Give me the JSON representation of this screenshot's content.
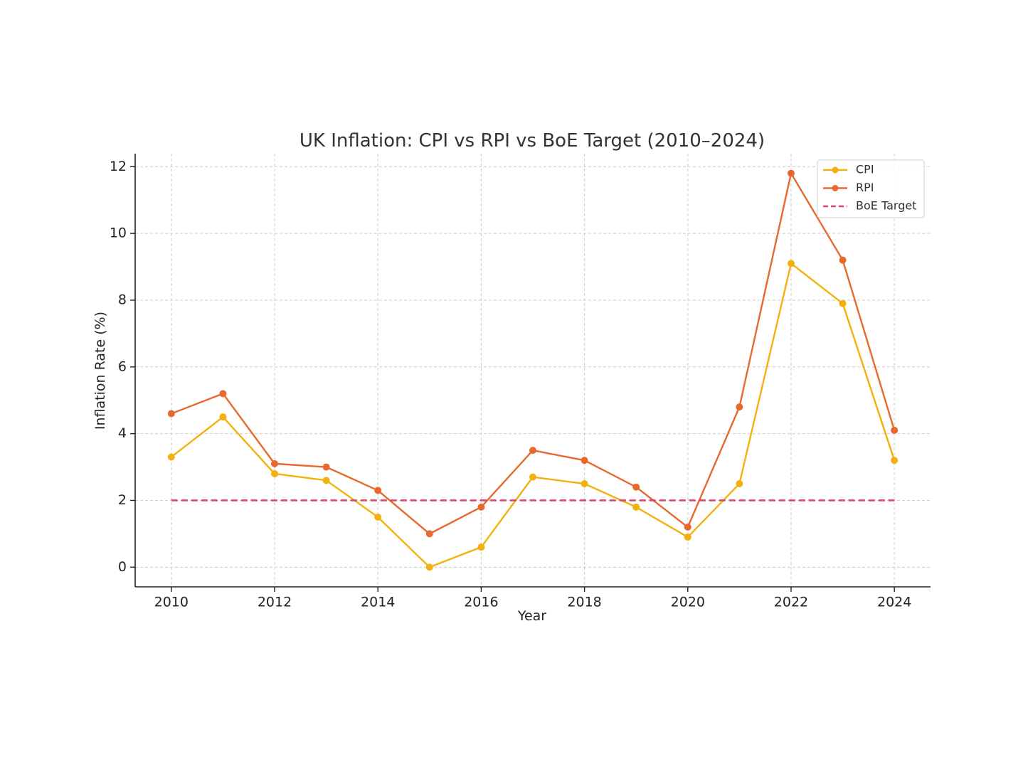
{
  "chart_data": {
    "type": "line",
    "title": "UK Inflation: CPI vs RPI vs BoE Target (2010–2024)",
    "xlabel": "Year",
    "ylabel": "Inflation Rate (%)",
    "x": [
      2010,
      2011,
      2012,
      2013,
      2014,
      2015,
      2016,
      2017,
      2018,
      2019,
      2020,
      2021,
      2022,
      2023,
      2024
    ],
    "xticks": [
      2010,
      2012,
      2014,
      2016,
      2018,
      2020,
      2022,
      2024
    ],
    "yticks": [
      0,
      2,
      4,
      6,
      8,
      10,
      12
    ],
    "xlim": [
      2009.3,
      2024.7
    ],
    "ylim": [
      -0.59,
      12.39
    ],
    "grid": true,
    "legend_position": "top-right",
    "series": [
      {
        "name": "CPI",
        "color": "#f2b10e",
        "style": "solid",
        "markers": true,
        "values": [
          3.3,
          4.5,
          2.8,
          2.6,
          1.5,
          0.0,
          0.6,
          2.7,
          2.5,
          1.8,
          0.9,
          2.5,
          9.1,
          7.9,
          3.2
        ]
      },
      {
        "name": "RPI",
        "color": "#e8692e",
        "style": "solid",
        "markers": true,
        "values": [
          4.6,
          5.2,
          3.1,
          3.0,
          2.3,
          1.0,
          1.8,
          3.5,
          3.2,
          2.4,
          1.2,
          4.8,
          11.8,
          9.2,
          4.1
        ]
      },
      {
        "name": "BoE Target",
        "color": "#e0456b",
        "style": "dashed",
        "markers": false,
        "values": [
          2,
          2,
          2,
          2,
          2,
          2,
          2,
          2,
          2,
          2,
          2,
          2,
          2,
          2,
          2
        ]
      }
    ]
  }
}
